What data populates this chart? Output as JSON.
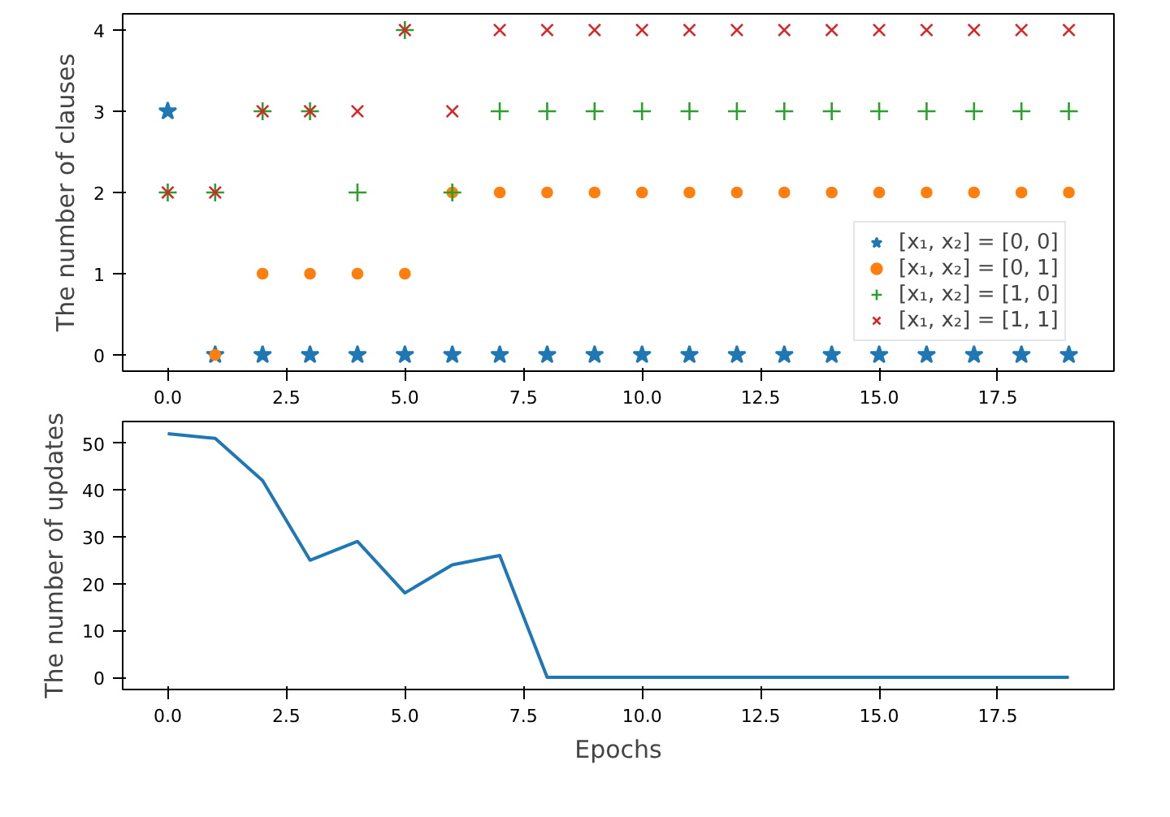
{
  "chart_data": [
    {
      "type": "scatter",
      "ylabel": "The number of clauses",
      "x": [
        0,
        1,
        2,
        3,
        4,
        5,
        6,
        7,
        8,
        9,
        10,
        11,
        12,
        13,
        14,
        15,
        16,
        17,
        18,
        19
      ],
      "xlim": [
        -0.95,
        19.95
      ],
      "xticks": [
        {
          "value": 0,
          "label": "0.0"
        },
        {
          "value": 2.5,
          "label": "2.5"
        },
        {
          "value": 5,
          "label": "5.0"
        },
        {
          "value": 7.5,
          "label": "7.5"
        },
        {
          "value": 10,
          "label": "10.0"
        },
        {
          "value": 12.5,
          "label": "12.5"
        },
        {
          "value": 15,
          "label": "15.0"
        },
        {
          "value": 17.5,
          "label": "17.5"
        }
      ],
      "ylim": [
        -0.2,
        4.2
      ],
      "yticks": [
        0,
        1,
        2,
        3,
        4
      ],
      "grid": false,
      "legend": "center right",
      "series": [
        {
          "name": "[x₁, x₂] = [0, 0]",
          "color": "#1f77b4",
          "marker": "star",
          "values": [
            3,
            0,
            0,
            0,
            0,
            0,
            0,
            0,
            0,
            0,
            0,
            0,
            0,
            0,
            0,
            0,
            0,
            0,
            0,
            0
          ]
        },
        {
          "name": "[x₁, x₂] = [0, 1]",
          "color": "#ff7f0e",
          "marker": "circle",
          "values": [
            null,
            0,
            1,
            1,
            1,
            1,
            2,
            2,
            2,
            2,
            2,
            2,
            2,
            2,
            2,
            2,
            2,
            2,
            2,
            2
          ]
        },
        {
          "name": "[x₁, x₂] = [1, 0]",
          "color": "#2ca02c",
          "marker": "cross",
          "values": [
            2,
            2,
            3,
            3,
            2,
            4,
            2,
            3,
            3,
            3,
            3,
            3,
            3,
            3,
            3,
            3,
            3,
            3,
            3,
            3
          ]
        },
        {
          "name": "[x₁, x₂] = [1, 1]",
          "color": "#d62728",
          "marker": "x",
          "values": [
            2,
            2,
            3,
            3,
            3,
            4,
            3,
            4,
            4,
            4,
            4,
            4,
            4,
            4,
            4,
            4,
            4,
            4,
            4,
            4
          ]
        }
      ]
    },
    {
      "type": "line",
      "xlabel": "Epochs",
      "ylabel": "The number of updates",
      "x": [
        0,
        1,
        2,
        3,
        4,
        5,
        6,
        7,
        8,
        9,
        10,
        11,
        12,
        13,
        14,
        15,
        16,
        17,
        18,
        19
      ],
      "xlim": [
        -0.95,
        19.95
      ],
      "xticks": [
        {
          "value": 0,
          "label": "0.0"
        },
        {
          "value": 2.5,
          "label": "2.5"
        },
        {
          "value": 5,
          "label": "5.0"
        },
        {
          "value": 7.5,
          "label": "7.5"
        },
        {
          "value": 10,
          "label": "10.0"
        },
        {
          "value": 12.5,
          "label": "12.5"
        },
        {
          "value": 15,
          "label": "15.0"
        },
        {
          "value": 17.5,
          "label": "17.5"
        }
      ],
      "ylim": [
        -2.6,
        54.6
      ],
      "yticks": [
        0,
        10,
        20,
        30,
        40,
        50
      ],
      "grid": false,
      "marker": "none",
      "line_style": "solid",
      "series": [
        {
          "color": "#1f77b4",
          "values": [
            52,
            51,
            42,
            25,
            29,
            18,
            24,
            26,
            0,
            0,
            0,
            0,
            0,
            0,
            0,
            0,
            0,
            0,
            0,
            0
          ]
        }
      ]
    }
  ]
}
